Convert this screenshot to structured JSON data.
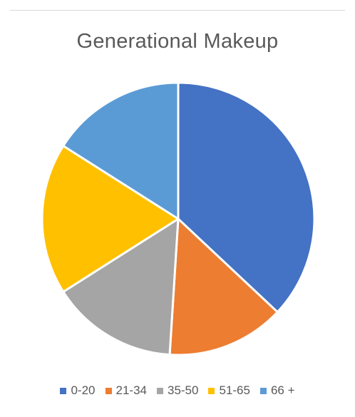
{
  "chart_data": {
    "type": "pie",
    "title": "Generational Makeup",
    "categories": [
      "0-20",
      "21-34",
      "35-50",
      "51-65",
      "66 +"
    ],
    "values": [
      37,
      14,
      15,
      18,
      16
    ],
    "colors": [
      "#4472c4",
      "#ed7d31",
      "#a5a5a5",
      "#ffc000",
      "#5b9bd5"
    ],
    "start_angle_deg": 0,
    "direction": "clockwise",
    "legend_position": "bottom"
  }
}
